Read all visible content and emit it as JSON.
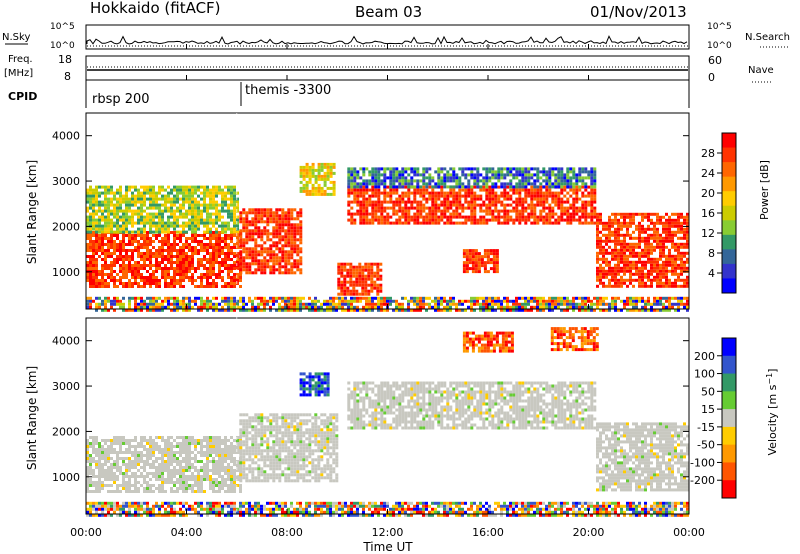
{
  "header": {
    "station": "Hokkaido (fitACF)",
    "beam": "Beam 03",
    "date": "01/Nov/2013"
  },
  "nsky_panel": {
    "left_label": "N.Sky",
    "right_label": "N.Search",
    "left_ticks": [
      "10^5",
      "10^0"
    ],
    "right_ticks": [
      "10^5",
      "10^0"
    ]
  },
  "freq_panel": {
    "left_label_line1": "Freq.",
    "left_label_line2": "[MHz]",
    "right_label": "Nave",
    "left_ticks": [
      "18",
      "8"
    ],
    "right_ticks": [
      "60",
      "0"
    ]
  },
  "cpid_panel": {
    "label": "CPID",
    "segments": [
      {
        "text": "rbsp 200",
        "start_hour": 0
      },
      {
        "text": "themis -3300",
        "start_hour": 6
      }
    ]
  },
  "time_axis": {
    "label": "Time UT",
    "ticks": [
      "00:00",
      "04:00",
      "08:00",
      "12:00",
      "16:00",
      "20:00",
      "00:00"
    ]
  },
  "chart_data": [
    {
      "type": "heatmap",
      "panel": "power",
      "ylabel": "Slant Range [km]",
      "yticks": [
        1000,
        2000,
        3000,
        4000
      ],
      "ylim": [
        180,
        4500
      ],
      "xlim_hours": [
        0,
        24
      ],
      "colorbar": {
        "label": "Power [dB]",
        "ticks": [
          "28",
          "24",
          "20",
          "16",
          "12",
          "8",
          "4"
        ],
        "colors": [
          "#ff0000",
          "#ff3300",
          "#ff6600",
          "#ff9900",
          "#ffcc00",
          "#cccc00",
          "#88cc33",
          "#339966",
          "#336699",
          "#3333cc",
          "#0000ff"
        ]
      },
      "regions": [
        {
          "t": [
            0,
            6.1
          ],
          "r": [
            700,
            1900
          ],
          "level": "high"
        },
        {
          "t": [
            6.1,
            8.6
          ],
          "r": [
            1000,
            2400
          ],
          "level": "high"
        },
        {
          "t": [
            0,
            6
          ],
          "r": [
            1900,
            2900
          ],
          "level": "low-mid"
        },
        {
          "t": [
            8.5,
            9.9
          ],
          "r": [
            2700,
            3400
          ],
          "level": "mid"
        },
        {
          "t": [
            10.4,
            20.2
          ],
          "r": [
            2100,
            2900
          ],
          "level": "high"
        },
        {
          "t": [
            10.4,
            20.2
          ],
          "r": [
            2900,
            3300
          ],
          "level": "low"
        },
        {
          "t": [
            10,
            11.7
          ],
          "r": [
            500,
            1200
          ],
          "level": "high"
        },
        {
          "t": [
            15,
            16.4
          ],
          "r": [
            1000,
            1500
          ],
          "level": "high"
        },
        {
          "t": [
            20.3,
            24
          ],
          "r": [
            700,
            2300
          ],
          "level": "high"
        },
        {
          "t": [
            0,
            24
          ],
          "r": [
            180,
            450
          ],
          "level": "mixed"
        }
      ]
    },
    {
      "type": "heatmap",
      "panel": "velocity",
      "ylabel": "Slant Range [km]",
      "yticks": [
        1000,
        2000,
        3000,
        4000
      ],
      "ylim": [
        180,
        4500
      ],
      "xlim_hours": [
        0,
        24
      ],
      "colorbar": {
        "label": "Velocity [m s^-1]",
        "ticks": [
          "200",
          "100",
          "50",
          "15",
          "-15",
          "-50",
          "-100",
          "-200"
        ],
        "colors": [
          "#0000ff",
          "#3355cc",
          "#339966",
          "#66cc33",
          "#c8c8c0",
          "#ffcc00",
          "#ff9900",
          "#ff5500",
          "#ff0000"
        ]
      },
      "regions": [
        {
          "t": [
            0,
            6.1
          ],
          "r": [
            700,
            1900
          ],
          "level": "near-zero"
        },
        {
          "t": [
            6.1,
            10
          ],
          "r": [
            900,
            2400
          ],
          "level": "near-zero"
        },
        {
          "t": [
            10.4,
            20.2
          ],
          "r": [
            2100,
            3100
          ],
          "level": "near-zero"
        },
        {
          "t": [
            8.5,
            9.6
          ],
          "r": [
            2800,
            3300
          ],
          "level": "positive"
        },
        {
          "t": [
            15,
            17
          ],
          "r": [
            3800,
            4200
          ],
          "level": "negative"
        },
        {
          "t": [
            18.5,
            20.3
          ],
          "r": [
            3800,
            4300
          ],
          "level": "negative"
        },
        {
          "t": [
            20.3,
            24
          ],
          "r": [
            700,
            2200
          ],
          "level": "near-zero"
        },
        {
          "t": [
            0,
            24
          ],
          "r": [
            180,
            450
          ],
          "level": "mixed"
        }
      ]
    }
  ]
}
